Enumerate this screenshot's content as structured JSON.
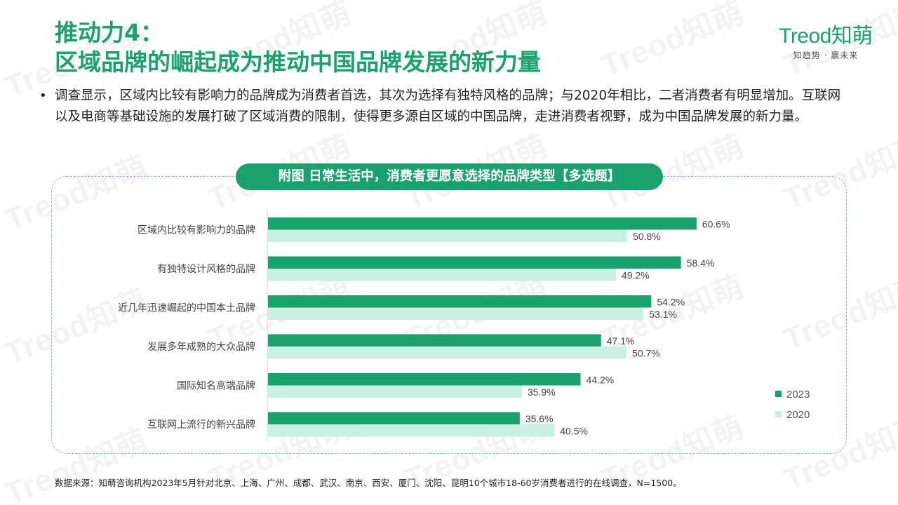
{
  "header": {
    "title_line1": "推动力4：",
    "title_line2": "区域品牌的崛起成为推动中国品牌发展的新力量"
  },
  "logo": {
    "brand": "Treod知萌",
    "tagline": "知趋势 · 赢未来"
  },
  "watermark": "Treod知萌",
  "bullet": {
    "symbol": "•",
    "text": "调查显示，区域内比较有影响力的品牌成为消费者首选，其次为选择有独特风格的品牌；与2020年相比，二者消费者有明显增加。互联网以及电商等基础设施的发展打破了区域消费的限制，使得更多源自区域的中国品牌，走进消费者视野，成为中国品牌发展的新力量。"
  },
  "chart_data": {
    "type": "bar",
    "orientation": "horizontal",
    "title": "附图 日常生活中，消费者更愿意选择的品牌类型【多选题】",
    "categories": [
      "区域内比较有影响力的品牌",
      "有独特设计风格的品牌",
      "近几年迅速崛起的中国本土品牌",
      "发展多年成熟的大众品牌",
      "国际知名高端品牌",
      "互联网上流行的新兴品牌"
    ],
    "series": [
      {
        "name": "2023",
        "values": [
          60.6,
          58.4,
          54.2,
          47.1,
          44.2,
          35.6
        ],
        "color": "#1aa26e"
      },
      {
        "name": "2020",
        "values": [
          50.8,
          49.2,
          53.1,
          50.7,
          35.9,
          40.5
        ],
        "color": "#c9f0e3"
      }
    ],
    "value_suffix": "%",
    "xlim": [
      0,
      100
    ],
    "grid": false,
    "legend": "bottom-right"
  },
  "source": "数据来源：知萌咨询机构2023年5月针对北京、上海、广州、成都、武汉、南京、西安、厦门、沈阳、昆明10个城市18-60岁消费者进行的在线调查，N=1500。",
  "colors": {
    "accent": "#1aa26e",
    "light": "#c9f0e3",
    "border": "#6cc7c9"
  }
}
